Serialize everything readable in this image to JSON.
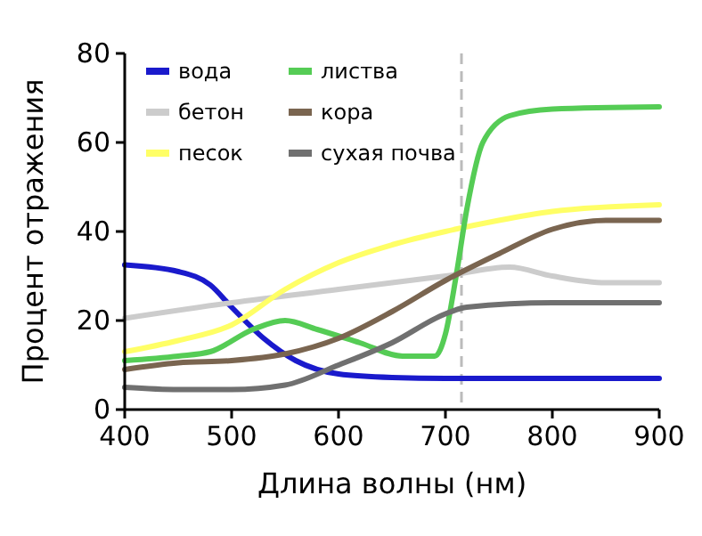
{
  "chart_data": {
    "type": "line",
    "xlabel": "Длина волны (нм)",
    "ylabel": "Процент отражения",
    "xlim": [
      400,
      900
    ],
    "ylim": [
      0,
      80
    ],
    "xticks": [
      400,
      500,
      600,
      700,
      800,
      900
    ],
    "yticks": [
      0,
      20,
      40,
      60,
      80
    ],
    "grid": false,
    "legend": "top left",
    "ref_lines": [
      {
        "axis": "x",
        "value": 715,
        "color": "#bbbbbb",
        "line_style": "dashed"
      }
    ],
    "series": [
      {
        "name": "вода",
        "color": "#1a1acc",
        "x": [
          400,
          450,
          480,
          500,
          530,
          560,
          600,
          650,
          700,
          800,
          900
        ],
        "values": [
          32.5,
          31,
          28,
          23,
          16,
          11,
          8,
          7.2,
          7,
          7,
          7
        ]
      },
      {
        "name": "бетон",
        "color": "#cccccc",
        "x": [
          400,
          500,
          600,
          700,
          760,
          800,
          850,
          900
        ],
        "values": [
          20.5,
          24,
          27,
          30,
          32,
          30,
          28.5,
          28.5
        ]
      },
      {
        "name": "песок",
        "color": "#ffff66",
        "x": [
          400,
          450,
          500,
          550,
          600,
          650,
          700,
          750,
          800,
          900
        ],
        "values": [
          13,
          15.5,
          19,
          27,
          33,
          37,
          40,
          42.5,
          44.5,
          46
        ]
      },
      {
        "name": "листва",
        "color": "#55cc55",
        "x": [
          400,
          450,
          480,
          520,
          550,
          580,
          620,
          660,
          690,
          700,
          710,
          720,
          735,
          760,
          800,
          900
        ],
        "values": [
          11,
          12,
          13,
          18,
          20,
          18,
          15,
          12,
          12,
          17,
          30,
          45,
          60,
          66,
          67.5,
          68
        ]
      },
      {
        "name": "кора",
        "color": "#7a6550",
        "x": [
          400,
          450,
          500,
          550,
          600,
          650,
          700,
          750,
          800,
          850,
          900
        ],
        "values": [
          9,
          10.5,
          11,
          12.5,
          16,
          22,
          29,
          35,
          40.5,
          42.5,
          42.5
        ]
      },
      {
        "name": "сухая почва",
        "color": "#707070",
        "x": [
          400,
          450,
          500,
          550,
          600,
          650,
          700,
          720,
          800,
          900
        ],
        "values": [
          5,
          4.5,
          4.5,
          5.5,
          10,
          15,
          21.5,
          23,
          24,
          24
        ]
      }
    ]
  }
}
